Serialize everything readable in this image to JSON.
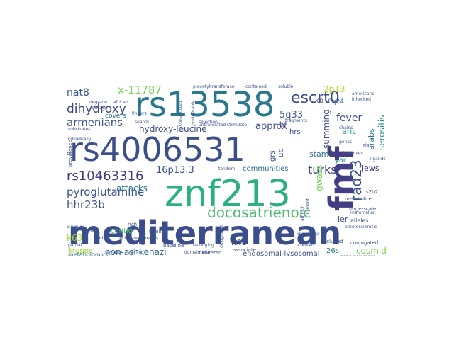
{
  "wordcloud": {
    "words": [
      {
        "id": "mediterranean",
        "text": "mediterranean",
        "color": "#3b4e8b"
      },
      {
        "id": "znf213",
        "text": "znf213",
        "color": "#2bb17d"
      },
      {
        "id": "rs4006531",
        "text": "rs4006531",
        "color": "#3b5089"
      },
      {
        "id": "rs13538",
        "text": "rs13538",
        "color": "#2a788e"
      },
      {
        "id": "fmf",
        "text": "fmf",
        "color": "#433d84"
      },
      {
        "id": "docosatrienoic",
        "text": "docosatrienoic",
        "color": "#4fba6e"
      },
      {
        "id": "rs10463316",
        "text": "rs10463316",
        "color": "#463480"
      },
      {
        "id": "escrt0",
        "text": "escrt0",
        "color": "#3f4a8a"
      },
      {
        "id": "pyroglutamine",
        "text": "pyroglutamine",
        "color": "#3a538b"
      },
      {
        "id": "dihydroxy",
        "text": "dihydroxy",
        "color": "#414487"
      },
      {
        "id": "rad23",
        "text": "rad23",
        "color": "#3a538b"
      },
      {
        "id": "armenians",
        "text": "armenians",
        "color": "#3b528b"
      },
      {
        "id": "hydroxy-leucine",
        "text": "hydroxy-leucine",
        "color": "#3e4c8a"
      },
      {
        "id": "turks",
        "text": "turks",
        "color": "#414487"
      },
      {
        "id": "hhr23b",
        "text": "hhr23b",
        "color": "#3b528b"
      },
      {
        "id": "x-11787",
        "text": "x-11787",
        "color": "#7ad151"
      },
      {
        "id": "nat8",
        "text": "nat8",
        "color": "#39558c"
      },
      {
        "id": "fever",
        "text": "fever",
        "color": "#3b528b"
      },
      {
        "id": "approx",
        "text": "approx",
        "color": "#3d4d8a"
      },
      {
        "id": "5q33",
        "text": "5q33",
        "color": "#38598c"
      },
      {
        "id": "non-ashkenazi",
        "text": "non-ashkenazi",
        "color": "#31688e"
      },
      {
        "id": "16p13.3",
        "text": "16p13.3",
        "color": "#3b528b"
      },
      {
        "id": "attacks",
        "text": "attacks",
        "color": "#2c728e"
      },
      {
        "id": "summing",
        "text": "summing",
        "color": "#3e4a89"
      },
      {
        "id": "serositis",
        "text": "serositis",
        "color": "#21918c"
      },
      {
        "id": "cosmid",
        "text": "cosmid",
        "color": "#7ad151"
      },
      {
        "id": "2p13",
        "text": "2p13",
        "color": "#b5de2b"
      },
      {
        "id": "stam",
        "text": "stam",
        "color": "#2e6e8e"
      },
      {
        "id": "gwass",
        "text": "gwass",
        "color": "#6ece58"
      },
      {
        "id": "k63",
        "text": "k63",
        "color": "#a5db36"
      },
      {
        "id": "k48",
        "text": "k48",
        "color": "#3e4989"
      },
      {
        "id": "jews",
        "text": "jews",
        "color": "#46327e"
      },
      {
        "id": "arabs",
        "text": "arabs",
        "color": "#2c738e"
      },
      {
        "id": "aric",
        "text": "aric",
        "color": "#1f9e89"
      },
      {
        "id": "ler",
        "text": "ler",
        "color": "#3e4a89"
      },
      {
        "id": "kruppel",
        "text": "kruppel",
        "color": "#a0da39"
      },
      {
        "id": "communities",
        "text": "communities",
        "color": "#2d708e"
      },
      {
        "id": "endosomal-lysosomal",
        "text": "endosomal-lysosomal",
        "color": "#3b528b"
      },
      {
        "id": "covers",
        "text": "covers",
        "color": "#2d708e"
      },
      {
        "id": "metabolomics",
        "text": "metabolomics",
        "color": "#31688e"
      },
      {
        "id": "contig",
        "text": "contig",
        "color": "#48c16e"
      },
      {
        "id": "hrs",
        "text": "hrs",
        "color": "#3e4989"
      },
      {
        "id": "yac",
        "text": "yac",
        "color": "#1f988b"
      },
      {
        "id": "kb",
        "text": "kb",
        "color": "#3e4989"
      },
      {
        "id": "8q24",
        "text": "8q24",
        "color": "#31688e"
      },
      {
        "id": "hf",
        "text": "hf",
        "color": "#3e4989"
      },
      {
        "id": "26s",
        "text": "26s",
        "color": "#2a788e"
      },
      {
        "id": "grs",
        "text": "grs",
        "color": "#3b528b"
      },
      {
        "id": "ub",
        "text": "ub",
        "color": "#3e4a89"
      },
      {
        "id": "baseline",
        "text": "baseline",
        "color": "#3b528b"
      },
      {
        "id": "familial",
        "text": "familial",
        "color": "#3b528b"
      },
      {
        "id": "delivered",
        "text": "delivered",
        "color": "#3b528b"
      },
      {
        "id": "associate",
        "text": "associate",
        "color": "#3b528b"
      },
      {
        "id": "alleles",
        "text": "alleles",
        "color": "#3b528b"
      },
      {
        "id": "metabolite",
        "text": "metabolite",
        "color": "#3b528b"
      },
      {
        "id": "large-scale",
        "text": "large-scale",
        "color": "#3b528b"
      },
      {
        "id": "conjugated",
        "text": "conjugated",
        "color": "#3b528b"
      },
      {
        "id": "excluded",
        "text": "excluded",
        "color": "#3b528b"
      },
      {
        "id": "atherosclerosis",
        "text": "atherosclerosis",
        "color": "#3b528b"
      },
      {
        "id": "improves",
        "text": "improves",
        "color": "#3b528b"
      },
      {
        "id": "inherited",
        "text": "inherited",
        "color": "#3b528b"
      },
      {
        "id": "americans",
        "text": "americans",
        "color": "#3b528b"
      },
      {
        "id": "nonsynonymous",
        "text": "nonsynonymous",
        "color": "#3b528b"
      },
      {
        "id": "soluble",
        "text": "soluble",
        "color": "#3b528b"
      },
      {
        "id": "contained",
        "text": "contained",
        "color": "#3b528b"
      },
      {
        "id": "p-acetyltransferase",
        "text": "p-acetyltransferase",
        "color": "#3b528b"
      },
      {
        "id": "degrade",
        "text": "degrade",
        "color": "#3b528b"
      },
      {
        "id": "linkage",
        "text": "linkage",
        "color": "#3b528b"
      },
      {
        "id": "african",
        "text": "african",
        "color": "#3b528b"
      },
      {
        "id": "substrates",
        "text": "substrates",
        "color": "#3b528b"
      },
      {
        "id": "fingers",
        "text": "fingers",
        "color": "#3b528b"
      },
      {
        "id": "prevalence",
        "text": "prevalence",
        "color": "#3b528b"
      },
      {
        "id": "rich",
        "text": "rich",
        "color": "#3b528b"
      },
      {
        "id": "technology",
        "text": "technology",
        "color": "#3b528b"
      },
      {
        "id": "retrovirus",
        "text": "retrovirus",
        "color": "#3b528b"
      },
      {
        "id": "domain-scan",
        "text": "domain/scan",
        "color": "#3b528b"
      },
      {
        "id": "tandem",
        "text": "tandem",
        "color": "#3b528b"
      },
      {
        "id": "untranslated",
        "text": "untranslated",
        "color": "#3b528b"
      },
      {
        "id": "selection",
        "text": "selection",
        "color": "#3b528b"
      },
      {
        "id": "incident",
        "text": "incident",
        "color": "#3b528b"
      },
      {
        "id": "affinity",
        "text": "affinity",
        "color": "#3b528b"
      },
      {
        "id": "transport",
        "text": "transport",
        "color": "#3b528b"
      },
      {
        "id": "designated",
        "text": "designated",
        "color": "#3b528b"
      },
      {
        "id": "starting",
        "text": "starting",
        "color": "#3b528b"
      },
      {
        "id": "p-value",
        "text": "p-value",
        "color": "#3b528b"
      },
      {
        "id": "bac",
        "text": "bac",
        "color": "#3b528b"
      },
      {
        "id": "search",
        "text": "search",
        "color": "#3b528b"
      },
      {
        "id": "constructed",
        "text": "constructed",
        "color": "#3b528b"
      },
      {
        "id": "considerably",
        "text": "considerably",
        "color": "#3b528b"
      },
      {
        "id": "belonging",
        "text": "belonging",
        "color": "#3b528b"
      },
      {
        "id": "fragments",
        "text": "fragments",
        "color": "#3b528b"
      },
      {
        "id": "knowledge",
        "text": "knowledge",
        "color": "#3b528b"
      },
      {
        "id": "created",
        "text": "created",
        "color": "#3b528b"
      },
      {
        "id": "genes",
        "text": "genes",
        "color": "#3b528b"
      },
      {
        "id": "chains",
        "text": "chains",
        "color": "#3b528b"
      },
      {
        "id": "rise",
        "text": "rise",
        "color": "#3b528b"
      },
      {
        "id": "s2h2",
        "text": "s2h2",
        "color": "#3b528b"
      },
      {
        "id": "mammalian",
        "text": "mammalian",
        "color": "#3b528b"
      },
      {
        "id": "ethnic",
        "text": "ethnic",
        "color": "#3b528b"
      },
      {
        "id": "severity",
        "text": "severity",
        "color": "#3b528b"
      },
      {
        "id": "ligands",
        "text": "ligands",
        "color": "#3b528b"
      },
      {
        "id": "stimulate",
        "text": "stimulate",
        "color": "#3b528b"
      },
      {
        "id": "mode",
        "text": "mode",
        "color": "#3b528b"
      },
      {
        "id": "partial",
        "text": "partial",
        "color": "#3b528b"
      },
      {
        "id": "individually",
        "text": "individually",
        "color": "#3b528b"
      }
    ]
  }
}
